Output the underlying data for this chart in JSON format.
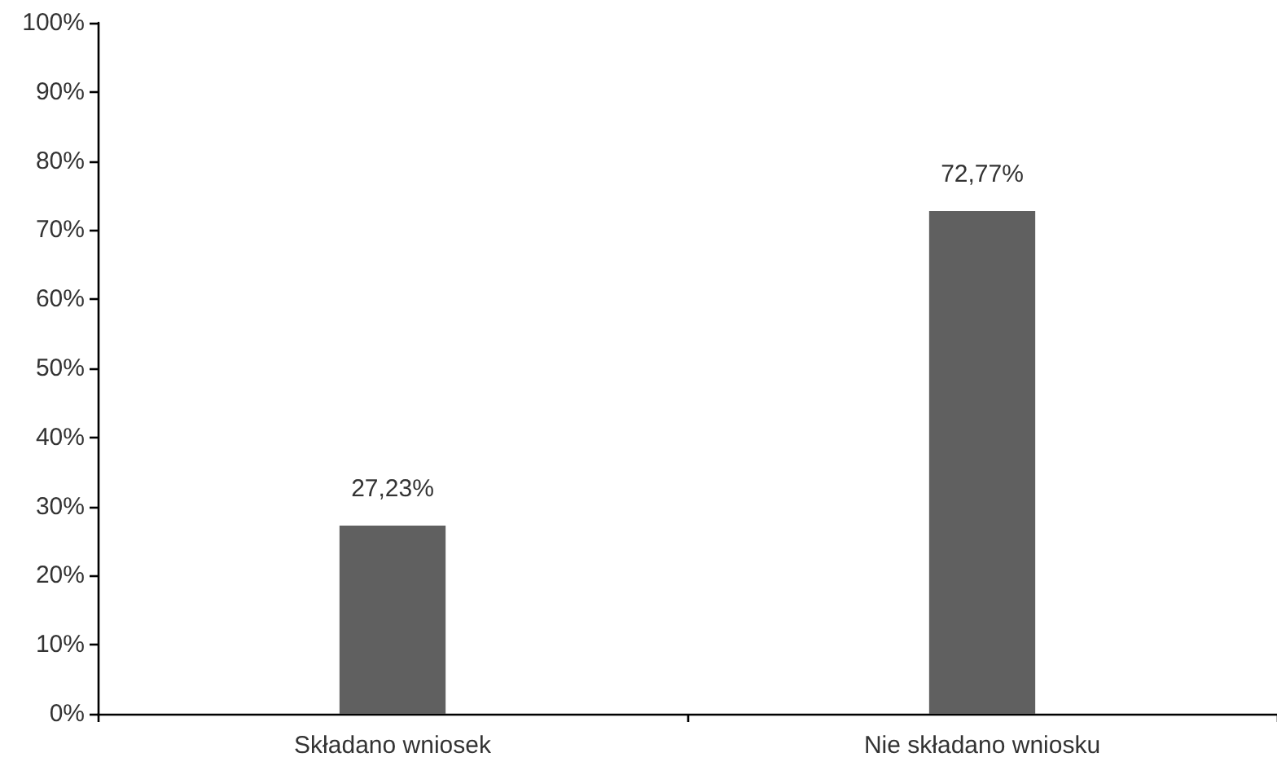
{
  "chart_data": {
    "type": "bar",
    "categories": [
      "Składano wniosek",
      "Nie składano wniosku"
    ],
    "values": [
      27.23,
      72.77
    ],
    "color": "#606060",
    "value_labels": [
      "27,23%",
      "72,77%"
    ],
    "ylim": [
      0,
      100
    ],
    "yticks": [
      {
        "value": 0,
        "label": "0%"
      },
      {
        "value": 10,
        "label": "10%"
      },
      {
        "value": 20,
        "label": "20%"
      },
      {
        "value": 30,
        "label": "30%"
      },
      {
        "value": 40,
        "label": "40%"
      },
      {
        "value": 50,
        "label": "50%"
      },
      {
        "value": 60,
        "label": "60%"
      },
      {
        "value": 70,
        "label": "70%"
      },
      {
        "value": 80,
        "label": "80%"
      },
      {
        "value": 90,
        "label": "90%"
      },
      {
        "value": 100,
        "label": "100%"
      }
    ],
    "grid": false
  }
}
